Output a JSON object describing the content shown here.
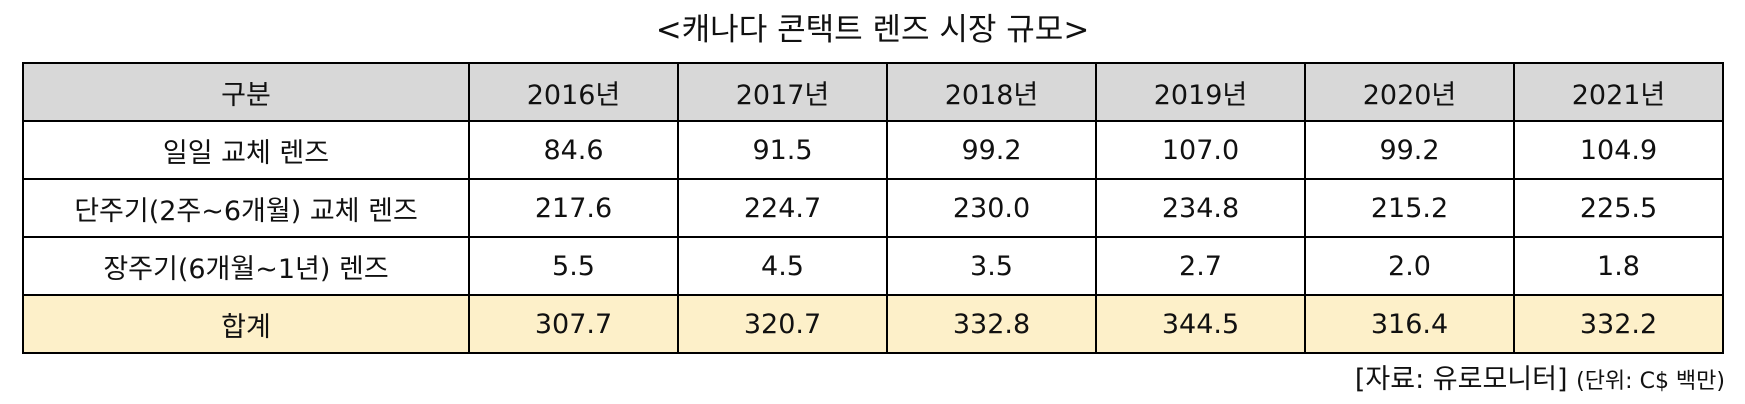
{
  "title": "<캐나다 콘택트 렌즈 시장 규모>",
  "table": {
    "headers": [
      "구분",
      "2016년",
      "2017년",
      "2018년",
      "2019년",
      "2020년",
      "2021년"
    ],
    "rows": [
      {
        "label": "일일 교체 렌즈",
        "values": [
          "84.6",
          "91.5",
          "99.2",
          "107.0",
          "99.2",
          "104.9"
        ]
      },
      {
        "label": "단주기(2주~6개월) 교체 렌즈",
        "values": [
          "217.6",
          "224.7",
          "230.0",
          "234.8",
          "215.2",
          "225.5"
        ]
      },
      {
        "label": "장주기(6개월~1년) 렌즈",
        "values": [
          "5.5",
          "4.5",
          "3.5",
          "2.7",
          "2.0",
          "1.8"
        ]
      }
    ],
    "total": {
      "label": "합계",
      "values": [
        "307.7",
        "320.7",
        "332.8",
        "344.5",
        "316.4",
        "332.2"
      ]
    }
  },
  "source": {
    "text": "[자료: 유로모니터]",
    "unit": "(단위: C$ 백만)"
  },
  "colors": {
    "header_bg": "#d8d8d8",
    "total_bg": "#fdf0c9",
    "border": "#000000"
  }
}
